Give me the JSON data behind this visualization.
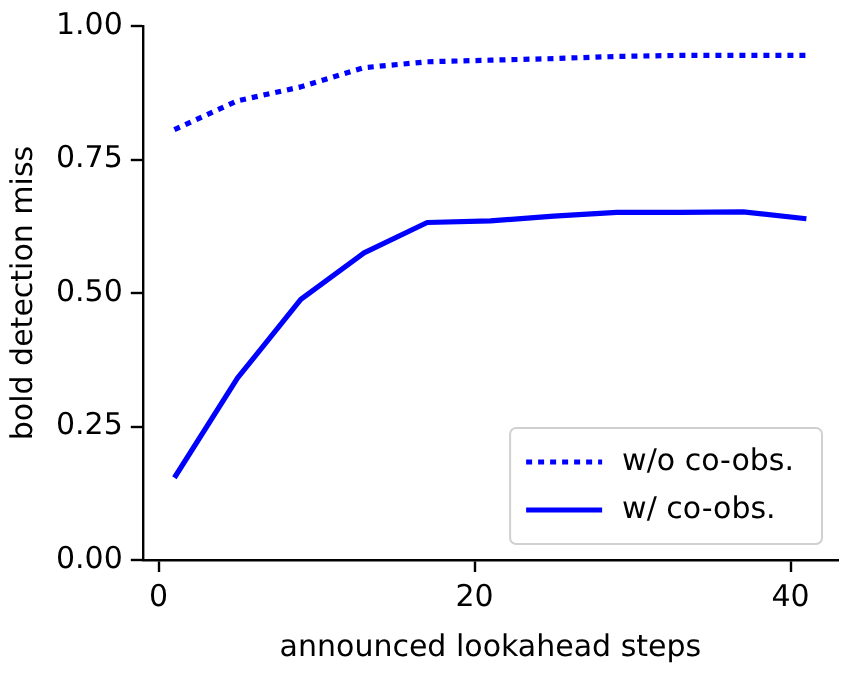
{
  "chart_data": {
    "type": "line",
    "xlabel": "announced lookahead steps",
    "ylabel": "bold detection miss",
    "x": [
      1,
      5,
      9,
      13,
      17,
      21,
      25,
      29,
      33,
      37,
      41
    ],
    "xlim": [
      -1,
      43
    ],
    "xticks": [
      0,
      20,
      40
    ],
    "ylim": [
      0,
      1
    ],
    "yticks": [
      {
        "value": 0,
        "label": "0.00"
      },
      {
        "value": 0.25,
        "label": "0.25"
      },
      {
        "value": 0.5,
        "label": "0.50"
      },
      {
        "value": 0.75,
        "label": "0.75"
      },
      {
        "value": 1,
        "label": "1.00"
      }
    ],
    "grid": false,
    "legend": "bottom right",
    "marker": "none",
    "series": [
      {
        "name": "w/o co-obs.",
        "color": "#0000ff",
        "line_style": "dotted",
        "values": [
          0.806,
          0.86,
          0.886,
          0.922,
          0.933,
          0.936,
          0.939,
          0.943,
          0.945,
          0.945,
          0.945
        ]
      },
      {
        "name": "w/ co-obs.",
        "color": "#0000ff",
        "line_style": "solid",
        "values": [
          0.154,
          0.341,
          0.488,
          0.575,
          0.632,
          0.635,
          0.644,
          0.651,
          0.651,
          0.652,
          0.639
        ]
      }
    ]
  }
}
